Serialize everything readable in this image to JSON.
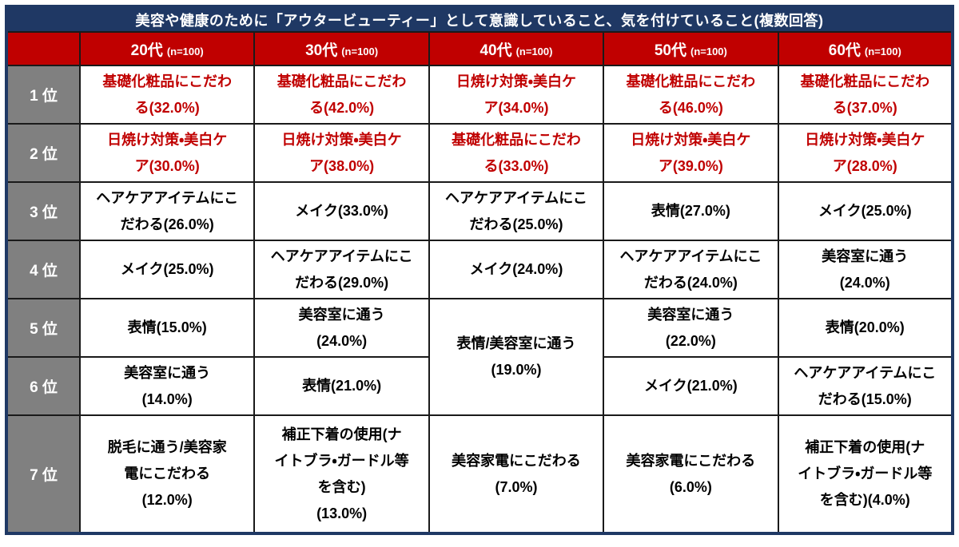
{
  "table": {
    "title": "美容や健康のために「アウタービューティー」として意識していること、気を付けていること(複数回答)",
    "columns": [
      {
        "age": "20代",
        "n": "(n=100)"
      },
      {
        "age": "30代",
        "n": "(n=100)"
      },
      {
        "age": "40代",
        "n": "(n=100)"
      },
      {
        "age": "50代",
        "n": "(n=100)"
      },
      {
        "age": "60代",
        "n": "(n=100)"
      }
    ],
    "rows": [
      {
        "rank": "1 位",
        "cells": [
          "基礎化粧品にこだわ\nる(32.0%)",
          "基礎化粧品にこだわ\nる(42.0%)",
          "日焼け対策・美白ケ\nア(34.0%)",
          "基礎化粧品にこだわ\nる(46.0%)",
          "基礎化粧品にこだわ\nる(37.0%)"
        ]
      },
      {
        "rank": "2 位",
        "cells": [
          "日焼け対策・美白ケ\nア(30.0%)",
          "日焼け対策・美白ケ\nア(38.0%)",
          "基礎化粧品にこだわ\nる(33.0%)",
          "日焼け対策・美白ケ\nア(39.0%)",
          "日焼け対策・美白ケ\nア(28.0%)"
        ]
      },
      {
        "rank": "3 位",
        "cells": [
          "ヘアケアアイテムにこ\nだわる(26.0%)",
          "メイク(33.0%)",
          "ヘアケアアイテムにこ\nだわる(25.0%)",
          "表情(27.0%)",
          "メイク(25.0%)"
        ]
      },
      {
        "rank": "4 位",
        "cells": [
          "メイク(25.0%)",
          "ヘアケアアイテムにこ\nだわる(29.0%)",
          "メイク(24.0%)",
          "ヘアケアアイテムにこ\nだわる(24.0%)",
          "美容室に通う\n(24.0%)"
        ]
      },
      {
        "rank": "5 位",
        "cells": [
          "表情(15.0%)",
          "美容室に通う\n(24.0%)",
          "表情/美容室に通う\n(19.0%)",
          "美容室に通う\n(22.0%)",
          "表情(20.0%)"
        ]
      },
      {
        "rank": "6 位",
        "cells": [
          "美容室に通う\n(14.0%)",
          "表情(21.0%)",
          "メイク(21.0%)",
          "ヘアケアアイテムにこ\nだわる(15.0%)"
        ]
      },
      {
        "rank": "7 位",
        "cells": [
          "脱毛に通う/美容家\n電にこだわる\n(12.0%)",
          "補正下着の使用(ナ\nイトブラ・ガードル等\nを含む)\n(13.0%)",
          "美容家電にこだわる\n(7.0%)",
          "美容家電にこだわる\n(6.0%)",
          "補正下着の使用(ナ\nイトブラ・ガードル等\nを含む)(4.0%)"
        ]
      }
    ]
  },
  "colors": {
    "title_navy": "#1F3864",
    "header_red": "#C00000",
    "rank_gray": "#808080",
    "highlight_text_red": "#C00000",
    "body_text_black": "#000000",
    "grid_line": "#1A1A1A",
    "outer_border_navy": "#1F3864"
  },
  "chart_data": {
    "type": "table",
    "title": "美容や健康のために「アウタービューティー」として意識していること、気を付けていること(複数回答)",
    "columns": [
      "20代",
      "30代",
      "40代",
      "50代",
      "60代"
    ],
    "sample_size_per_column": 100,
    "rows": [
      {
        "rank": "1位",
        "values": [
          {
            "item": "基礎化粧品にこだわる",
            "pct": 32.0
          },
          {
            "item": "基礎化粧品にこだわる",
            "pct": 42.0
          },
          {
            "item": "日焼け対策・美白ケア",
            "pct": 34.0
          },
          {
            "item": "基礎化粧品にこだわる",
            "pct": 46.0
          },
          {
            "item": "基礎化粧品にこだわる",
            "pct": 37.0
          }
        ]
      },
      {
        "rank": "2位",
        "values": [
          {
            "item": "日焼け対策・美白ケア",
            "pct": 30.0
          },
          {
            "item": "日焼け対策・美白ケア",
            "pct": 38.0
          },
          {
            "item": "基礎化粧品にこだわる",
            "pct": 33.0
          },
          {
            "item": "日焼け対策・美白ケア",
            "pct": 39.0
          },
          {
            "item": "日焼け対策・美白ケア",
            "pct": 28.0
          }
        ]
      },
      {
        "rank": "3位",
        "values": [
          {
            "item": "ヘアケアアイテムにこだわる",
            "pct": 26.0
          },
          {
            "item": "メイク",
            "pct": 33.0
          },
          {
            "item": "ヘアケアアイテムにこだわる",
            "pct": 25.0
          },
          {
            "item": "表情",
            "pct": 27.0
          },
          {
            "item": "メイク",
            "pct": 25.0
          }
        ]
      },
      {
        "rank": "4位",
        "values": [
          {
            "item": "メイク",
            "pct": 25.0
          },
          {
            "item": "ヘアケアアイテムにこだわる",
            "pct": 29.0
          },
          {
            "item": "メイク",
            "pct": 24.0
          },
          {
            "item": "ヘアケアアイテムにこだわる",
            "pct": 24.0
          },
          {
            "item": "美容室に通う",
            "pct": 24.0
          }
        ]
      },
      {
        "rank": "5位",
        "values": [
          {
            "item": "表情",
            "pct": 15.0
          },
          {
            "item": "美容室に通う",
            "pct": 24.0
          },
          {
            "item": "表情/美容室に通う",
            "pct": 19.0,
            "spans_ranks": [
              "5位",
              "6位"
            ]
          },
          {
            "item": "美容室に通う",
            "pct": 22.0
          },
          {
            "item": "表情",
            "pct": 20.0
          }
        ]
      },
      {
        "rank": "6位",
        "values": [
          {
            "item": "美容室に通う",
            "pct": 14.0
          },
          {
            "item": "表情",
            "pct": 21.0
          },
          null,
          {
            "item": "メイク",
            "pct": 21.0
          },
          {
            "item": "ヘアケアアイテムにこだわる",
            "pct": 15.0
          }
        ]
      },
      {
        "rank": "7位",
        "values": [
          {
            "item": "脱毛に通う/美容家電にこだわる",
            "pct": 12.0
          },
          {
            "item": "補正下着の使用(ナイトブラ・ガードル等を含む)",
            "pct": 13.0
          },
          {
            "item": "美容家電にこだわる",
            "pct": 7.0
          },
          {
            "item": "美容家電にこだわる",
            "pct": 6.0
          },
          {
            "item": "補正下着の使用(ナイトブラ・ガードル等を含む)",
            "pct": 4.0
          }
        ]
      }
    ]
  }
}
